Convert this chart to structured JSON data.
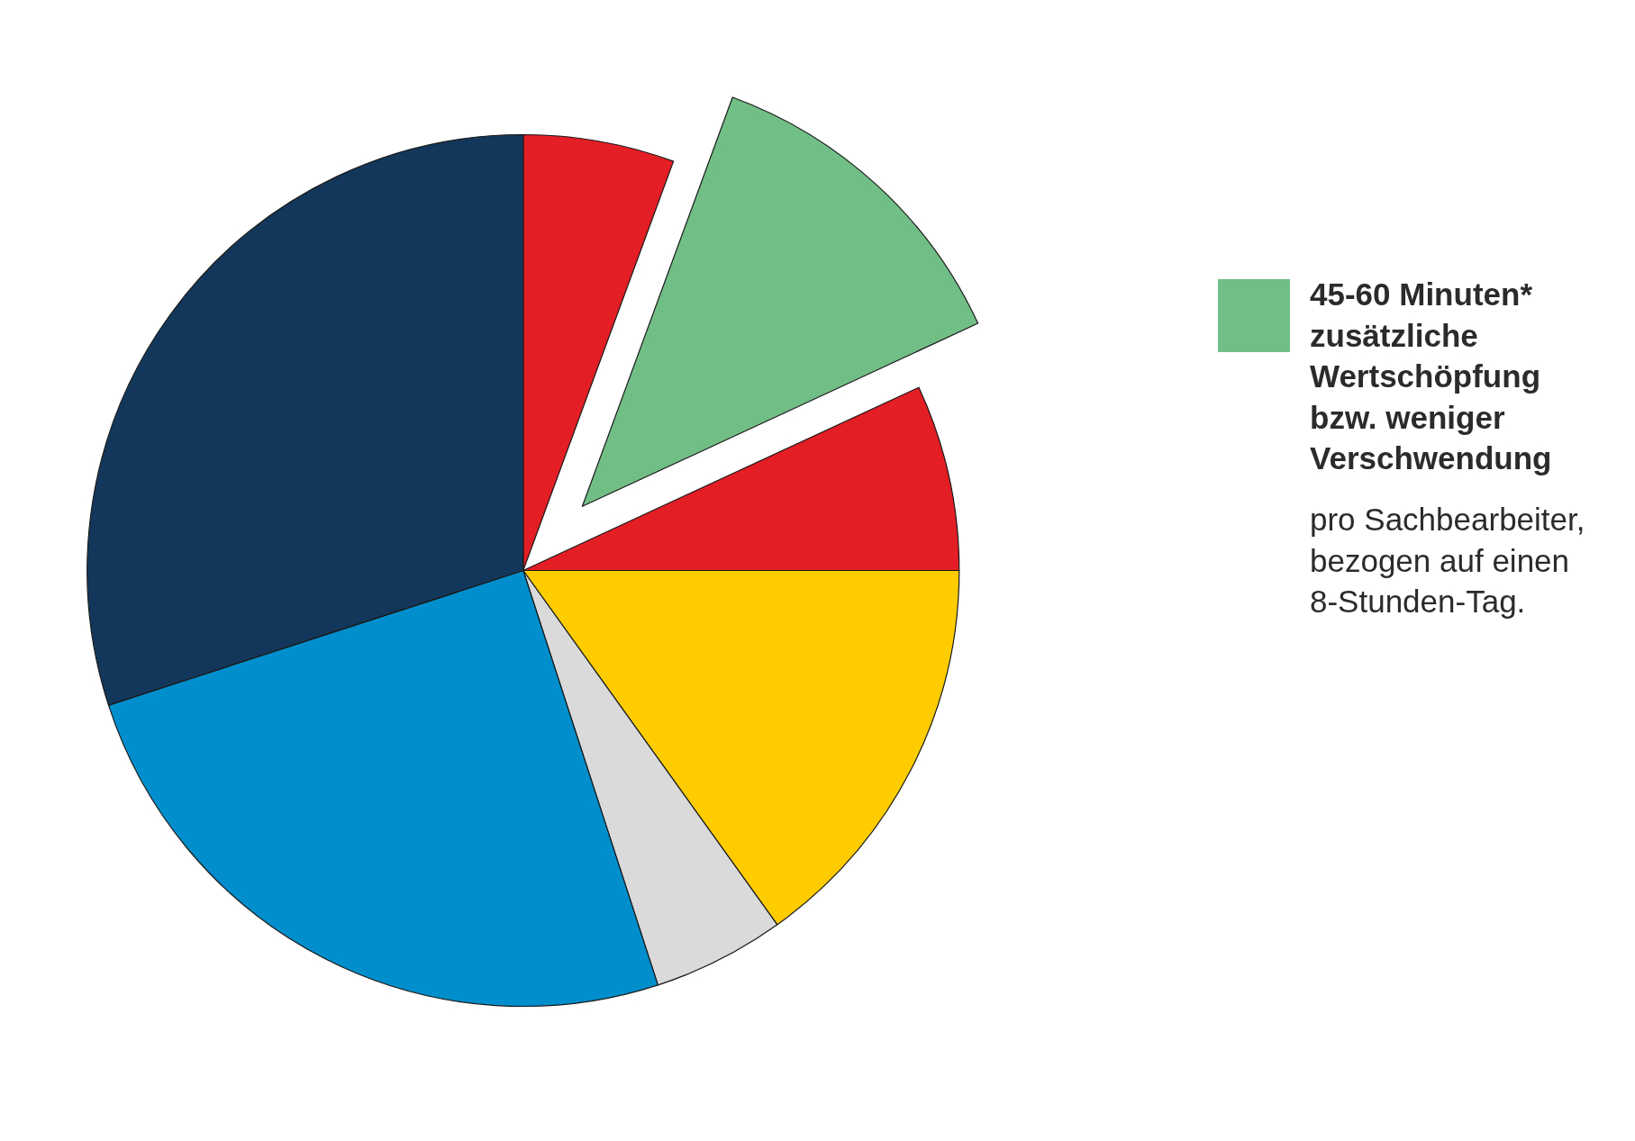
{
  "chart_data": {
    "type": "pie",
    "categories": [
      null,
      null,
      null,
      null,
      null,
      null,
      null
    ],
    "values": [
      5.6,
      12.5,
      6.9,
      15.1,
      4.9,
      25,
      30
    ],
    "colors": [
      "#e31e24",
      "#72be87",
      "#e31e24",
      "#ffcc00",
      "#d9dad9",
      "#008fcc",
      "#12375a"
    ],
    "annotations": [
      "45-60 Minuten*\nzusätzliche\nWertschöpfung\nbzw. weniger\nVerschwendung",
      "pro Sachbearbeiter,\nbezogen auf einen\n8-Stunden-Tag."
    ]
  }
}
